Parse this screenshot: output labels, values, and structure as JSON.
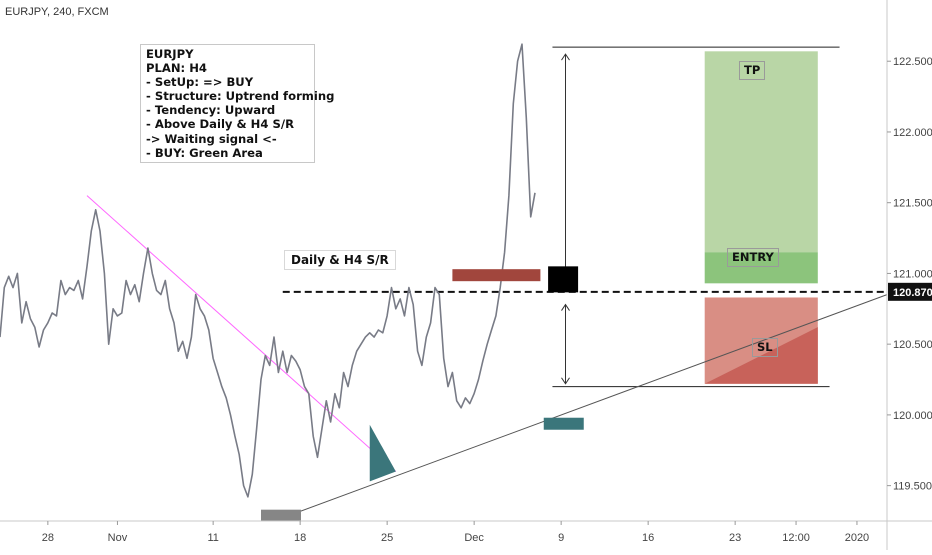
{
  "header": {
    "title": "EURJPY, 240, FXCM"
  },
  "plan_notes": [
    "EURJPY",
    "PLAN: H4",
    "- SetUp: => BUY",
    "- Structure: Uptrend forming",
    "- Tendency: Upward",
    "- Above Daily & H4 S/R",
    "-> Waiting signal <-",
    "- BUY: Green Area"
  ],
  "labels": {
    "sr_line": "Daily & H4 S/R",
    "tp": "TP",
    "entry": "ENTRY",
    "sl": "SL",
    "price_tag": "120.870"
  },
  "colors": {
    "price": "#787b86",
    "tp_zone": "#b9d6a6",
    "entry_zone": "#8cc47c",
    "sl_zone": "#d98e84",
    "sl_wedge": "#c8625a",
    "sr_red": "#a1463d",
    "teal": "#3b767b",
    "gray_marker": "#868686",
    "trend_down": "#ff66ff",
    "trend_up": "#555555"
  },
  "chart_data": {
    "type": "line",
    "symbol": "EURJPY",
    "timeframe": "240",
    "source": "FXCM",
    "ylim": [
      119.25,
      122.65
    ],
    "yticks": [
      122.5,
      122.0,
      121.5,
      121.0,
      120.5,
      120.0,
      119.5
    ],
    "ytick_labels": [
      "122.500",
      "122.000",
      "121.500",
      "121.000",
      "120.500",
      "120.000",
      "119.500"
    ],
    "xticks": [
      {
        "label": "28",
        "i": 11
      },
      {
        "label": "Nov",
        "i": 27
      },
      {
        "label": "11",
        "i": 49
      },
      {
        "label": "18",
        "i": 69
      },
      {
        "label": "25",
        "i": 89
      },
      {
        "label": "Dec",
        "i": 109
      },
      {
        "label": "9",
        "i": 129
      },
      {
        "label": "16",
        "i": 149
      },
      {
        "label": "23",
        "i": 169
      },
      {
        "label": "12:00",
        "i": 183
      },
      {
        "label": "2020",
        "i": 197
      }
    ],
    "series": [
      {
        "values": [
          120.55,
          120.9,
          120.98,
          120.9,
          121.0,
          120.65,
          120.8,
          120.68,
          120.62,
          120.48,
          120.6,
          120.65,
          120.72,
          120.7,
          120.95,
          120.85,
          120.9,
          120.88,
          120.95,
          120.82,
          121.05,
          121.3,
          121.45,
          121.3,
          121.0,
          120.5,
          120.75,
          120.7,
          120.72,
          120.95,
          120.85,
          120.92,
          120.8,
          121.0,
          121.18,
          121.0,
          120.88,
          120.85,
          120.95,
          120.75,
          120.65,
          120.45,
          120.52,
          120.4,
          120.55,
          120.85,
          120.75,
          120.7,
          120.6,
          120.4,
          120.3,
          120.2,
          120.12,
          120.0,
          119.85,
          119.72,
          119.5,
          119.42,
          119.58,
          119.9,
          120.25,
          120.42,
          120.35,
          120.55,
          120.3,
          120.45,
          120.3,
          120.42,
          120.38,
          120.32,
          120.2,
          120.15,
          119.85,
          119.7,
          119.9,
          120.1,
          119.95,
          120.15,
          120.05,
          120.3,
          120.2,
          120.35,
          120.45,
          120.5,
          120.55,
          120.58,
          120.55,
          120.6,
          120.58,
          120.7,
          120.9,
          120.75,
          120.82,
          120.7,
          120.9,
          120.78,
          120.45,
          120.35,
          120.55,
          120.65,
          120.9,
          120.85,
          120.4,
          120.2,
          120.3,
          120.1,
          120.05,
          120.12,
          120.08,
          120.15,
          120.25,
          120.38,
          120.5,
          120.6,
          120.7,
          120.9,
          121.15,
          121.55,
          122.2,
          122.5,
          122.62,
          122.1,
          121.4,
          121.57
        ]
      }
    ],
    "annotations": {
      "sr_level": 120.87,
      "tp_zone": {
        "from_i": 162,
        "to_i": 188,
        "low": 121.15,
        "high": 122.57
      },
      "entry_zone": {
        "from_i": 162,
        "to_i": 188,
        "low": 120.93,
        "high": 121.15
      },
      "sl_zone": {
        "from_i": 162,
        "to_i": 188,
        "low": 120.22,
        "high": 120.83
      },
      "top_line": {
        "from_i": 127,
        "to_i": 193,
        "value": 122.6
      },
      "bottom_line": {
        "from_i": 127,
        "to_i": 193,
        "value": 120.2
      },
      "downtrend": {
        "from": {
          "i": 20,
          "v": 121.55
        },
        "to": {
          "i": 91,
          "v": 119.6
        }
      },
      "uptrend": {
        "from": {
          "i": 63,
          "v": 119.25
        },
        "to": {
          "i": 203,
          "v": 120.85
        }
      }
    }
  }
}
